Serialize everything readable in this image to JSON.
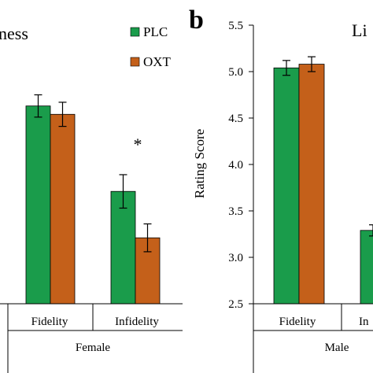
{
  "colors": {
    "PLC": "#1a9c4b",
    "OXT": "#c4601a",
    "axis": "#000000"
  },
  "chart_data": [
    {
      "type": "bar",
      "panel_label": "",
      "title": "ness",
      "ylabel": "",
      "ylim": [
        2.5,
        5.5
      ],
      "legend": {
        "placement": "top-right",
        "entries": [
          "PLC",
          "OXT"
        ]
      },
      "categories": [
        "Fidelity",
        "Infidelity"
      ],
      "group_label": "Female",
      "series": [
        {
          "name": "PLC",
          "values": [
            4.63,
            3.71
          ],
          "errors": [
            0.12,
            0.18
          ]
        },
        {
          "name": "OXT",
          "values": [
            4.54,
            3.21
          ],
          "errors": [
            0.13,
            0.15
          ]
        }
      ],
      "annotations": [
        "*"
      ]
    },
    {
      "type": "bar",
      "panel_label": "b",
      "title": "Li",
      "ylabel": "Rating Score",
      "ylim": [
        2.5,
        5.5
      ],
      "yticks": [
        "2.5",
        "3.0",
        "3.5",
        "4.0",
        "4.5",
        "5.0",
        "5.5"
      ],
      "categories": [
        "Fidelity",
        "In"
      ],
      "group_label": "Male",
      "series": [
        {
          "name": "PLC",
          "values": [
            5.04,
            3.29
          ],
          "errors": [
            0.08,
            0.06
          ]
        },
        {
          "name": "OXT",
          "values": [
            5.08,
            null
          ],
          "errors": [
            0.08,
            null
          ]
        }
      ],
      "annotations": []
    }
  ]
}
